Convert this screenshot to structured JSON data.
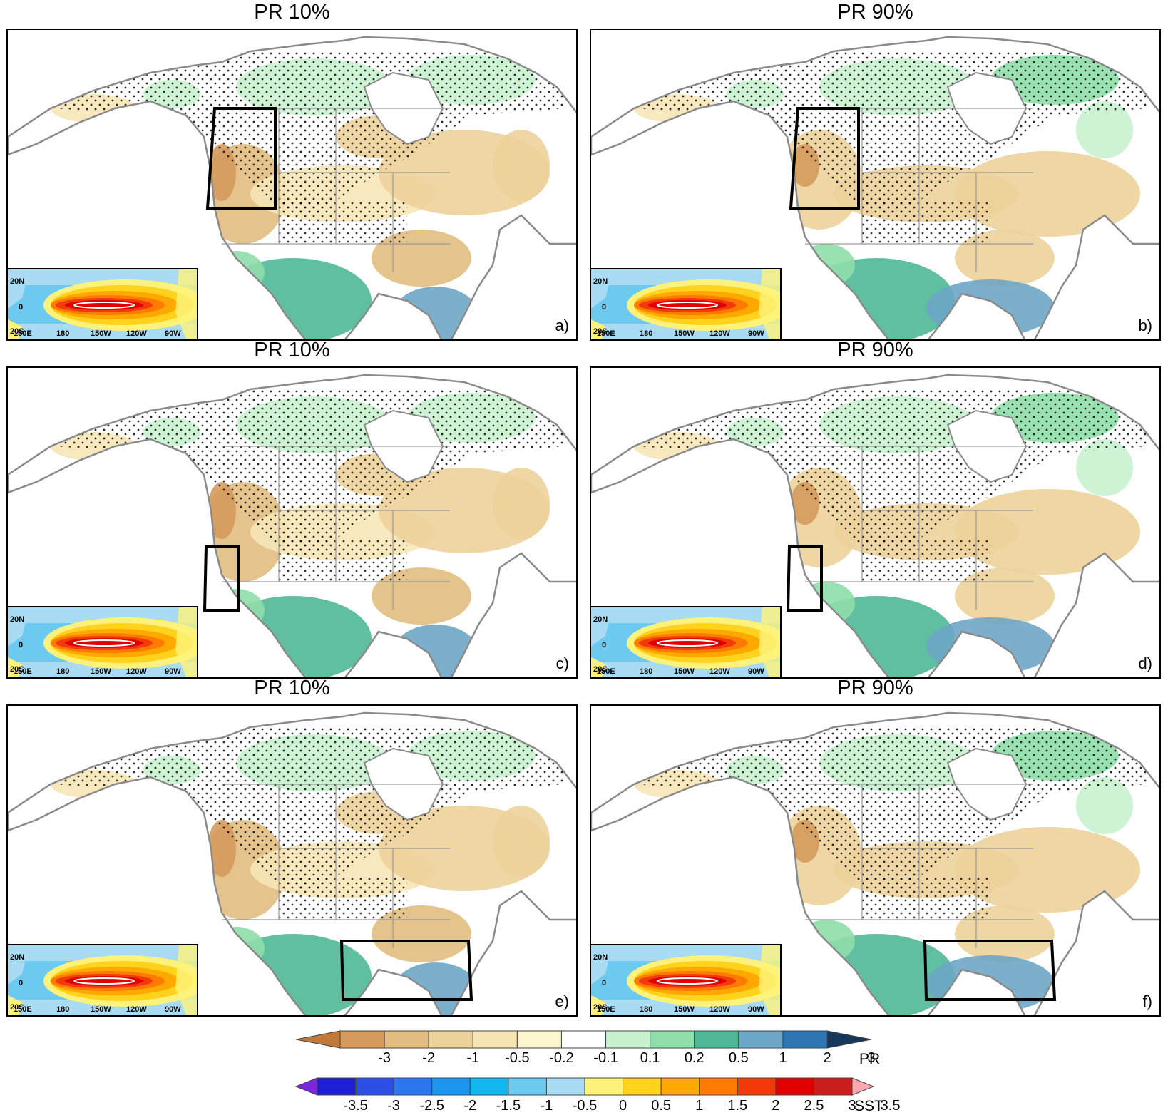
{
  "panels": [
    {
      "title": "PR 10%",
      "label": "a)"
    },
    {
      "title": "PR 90%",
      "label": "b)"
    },
    {
      "title": "PR 10%",
      "label": "c)"
    },
    {
      "title": "PR 90%",
      "label": "d)"
    },
    {
      "title": "PR 10%",
      "label": "e)"
    },
    {
      "title": "PR 90%",
      "label": "f)"
    }
  ],
  "inset": {
    "lat_labels": [
      "20N",
      "0",
      "20S"
    ],
    "lon_labels": [
      "150E",
      "180",
      "150W",
      "120W",
      "90W"
    ]
  },
  "colorbars": {
    "pr": {
      "name": "PR",
      "ticks": [
        "-3",
        "-2",
        "-1",
        "-0.5",
        "-0.2",
        "-0.1",
        "0.1",
        "0.2",
        "0.5",
        "1",
        "2",
        "3"
      ],
      "colors": [
        "#c1793a",
        "#d49b5c",
        "#e2bc80",
        "#edd19b",
        "#f6e6b6",
        "#fcf6d0",
        "#ffffff",
        "#c8f2cf",
        "#8fdeaa",
        "#4fb797",
        "#6da6c7",
        "#2f74b3",
        "#16375a"
      ]
    },
    "sst": {
      "name": "SST",
      "ticks": [
        "-3.5",
        "-3",
        "-2.5",
        "-2",
        "-1.5",
        "-1",
        "-0.5",
        "0",
        "0.5",
        "1",
        "1.5",
        "2",
        "2.5",
        "3",
        "3.5"
      ],
      "colors": [
        "#7b26dd",
        "#1f1fd6",
        "#2e4fe6",
        "#2c76ee",
        "#1e96f0",
        "#14b8f0",
        "#6ccaf1",
        "#a9dbf2",
        "#fff27a",
        "#ffd21e",
        "#ffa800",
        "#ff7a00",
        "#f23a0b",
        "#e00000",
        "#c81e1e",
        "#f7a8b0"
      ]
    }
  }
}
